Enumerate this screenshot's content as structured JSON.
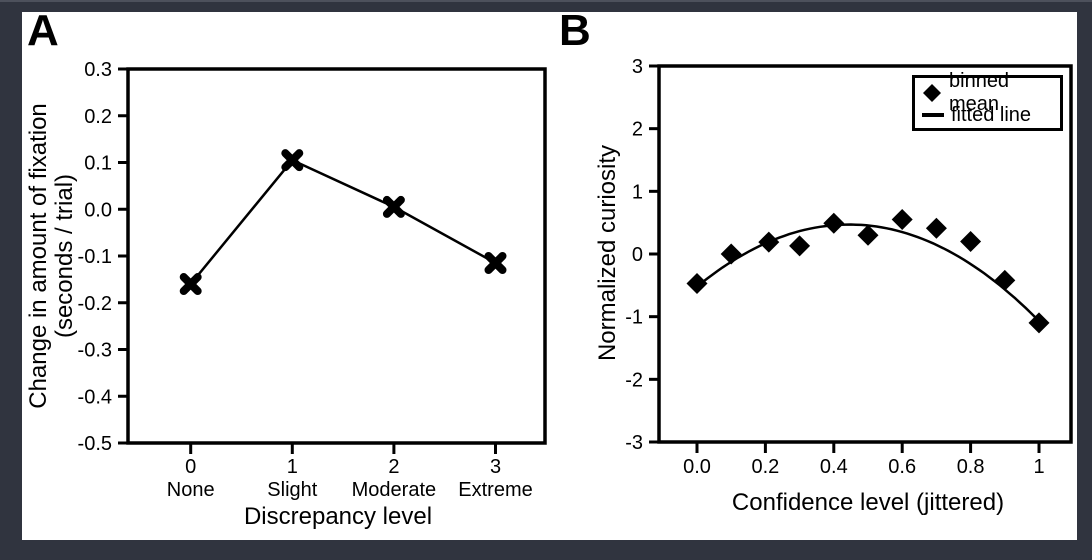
{
  "colors": {
    "frame_bg": "#30343f",
    "frame_top_edge": "#4d515c",
    "canvas_bg": "#ffffff",
    "ink": "#000000"
  },
  "panels": {
    "a": {
      "label": "A"
    },
    "b": {
      "label": "B"
    }
  },
  "chart_data": [
    {
      "id": "A",
      "type": "line",
      "panel_label": "A",
      "xlabel": "Discrepancy level",
      "ylabel_line1": "Change in amount of fixation",
      "ylabel_line2": "(seconds / trial)",
      "marker": "bold-x-cross",
      "x": [
        0,
        1,
        2,
        3
      ],
      "values": [
        -0.16,
        0.105,
        0.005,
        -0.115
      ],
      "xtick_labels": [
        "0",
        "1",
        "2",
        "3"
      ],
      "xtick_sublabels": [
        "None",
        "Slight",
        "Moderate",
        "Extreme"
      ],
      "ytick_values": [
        0.3,
        0.2,
        0.1,
        0.0,
        -0.1,
        -0.2,
        -0.3,
        -0.4,
        -0.5
      ],
      "ytick_labels": [
        "0.3",
        "0.2",
        "0.1",
        "0.0",
        "-0.1",
        "-0.2",
        "-0.3",
        "-0.4",
        "-0.5"
      ],
      "ylim": [
        -0.5,
        0.3
      ],
      "grid": false,
      "legend": null
    },
    {
      "id": "B",
      "type": "scatter",
      "panel_label": "B",
      "xlabel": "Confidence level (jittered)",
      "ylabel": "Normalized curiosity",
      "series": [
        {
          "name": "binned mean",
          "marker": "diamond",
          "x": [
            0.0,
            0.1,
            0.21,
            0.3,
            0.4,
            0.5,
            0.6,
            0.7,
            0.8,
            0.9,
            1.0
          ],
          "y": [
            -0.47,
            0.0,
            0.19,
            0.13,
            0.49,
            0.3,
            0.55,
            0.41,
            0.2,
            -0.42,
            -1.1
          ]
        },
        {
          "name": "fitted line",
          "marker": "line",
          "fit_quadratic": {
            "a": -0.52,
            "b": 4.45,
            "c": -5.0
          },
          "x_range": [
            0.0,
            1.015
          ]
        }
      ],
      "xtick_values": [
        0,
        0.2,
        0.4,
        0.6,
        0.8,
        1.0
      ],
      "xtick_labels": [
        "0.0",
        "0.2",
        "0.4",
        "0.6",
        "0.8",
        "1"
      ],
      "ytick_values": [
        3,
        2,
        1,
        0,
        -1,
        -2,
        -3
      ],
      "ytick_labels": [
        "3",
        "2",
        "1",
        "0",
        "-1",
        "-2",
        "-3"
      ],
      "ylim": [
        -3,
        3
      ],
      "grid": false,
      "legend": {
        "position": "top-right",
        "entries": [
          {
            "marker": "diamond",
            "label": "binned mean"
          },
          {
            "marker": "line",
            "label": "fitted line"
          }
        ]
      }
    }
  ]
}
